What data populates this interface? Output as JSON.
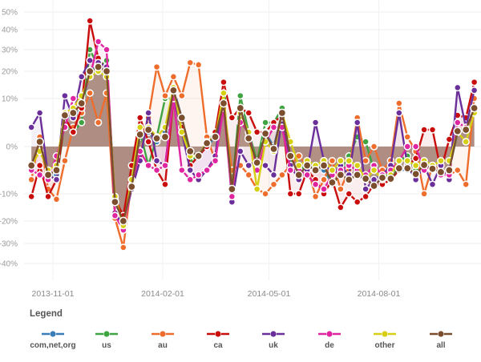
{
  "chart_data": {
    "type": "line",
    "title": "",
    "xlabel": "",
    "ylabel": "",
    "y_scale": "compressed (non-linear, symmetric around 0)",
    "ylim": [
      -40,
      50
    ],
    "y_ticks": [
      50,
      40,
      30,
      20,
      10,
      0,
      -10,
      -20,
      -30,
      -40
    ],
    "y_tick_labels": [
      "50%",
      "40%",
      "30%",
      "20%",
      "10%",
      "0%",
      "-10%",
      "-20%",
      "-30%",
      "-40%"
    ],
    "x_ticks": [
      "2013-11-01",
      "2014-02-01",
      "2014-05-01",
      "2014-08-01"
    ],
    "grid": true,
    "legend_title": "Legend",
    "legend_position": "bottom",
    "x": [
      "2013-10-14",
      "2013-10-21",
      "2013-10-28",
      "2013-11-04",
      "2013-11-11",
      "2013-11-18",
      "2013-11-25",
      "2013-12-02",
      "2013-12-09",
      "2013-12-16",
      "2013-12-23",
      "2013-12-30",
      "2014-01-06",
      "2014-01-13",
      "2014-01-20",
      "2014-01-27",
      "2014-02-03",
      "2014-02-10",
      "2014-02-17",
      "2014-02-24",
      "2014-03-03",
      "2014-03-10",
      "2014-03-17",
      "2014-03-24",
      "2014-03-31",
      "2014-04-07",
      "2014-04-14",
      "2014-04-21",
      "2014-04-28",
      "2014-05-05",
      "2014-05-12",
      "2014-05-19",
      "2014-05-26",
      "2014-06-02",
      "2014-06-09",
      "2014-06-16",
      "2014-06-23",
      "2014-06-30",
      "2014-07-07",
      "2014-07-14",
      "2014-07-21",
      "2014-07-28",
      "2014-08-04",
      "2014-08-11",
      "2014-08-18",
      "2014-08-25",
      "2014-09-01",
      "2014-09-08",
      "2014-09-15",
      "2014-09-22",
      "2014-09-29",
      "2014-10-06",
      "2014-10-13",
      "2014-10-20"
    ],
    "series": [
      {
        "name": "com,net,org",
        "color": "#3b7db8",
        "values": [
          -4,
          1,
          -6,
          -6,
          6,
          6,
          8,
          20,
          23,
          21,
          -13,
          -20,
          -8,
          2,
          3,
          1,
          3,
          14,
          6,
          -1,
          -2,
          0,
          2,
          9,
          -9,
          8,
          2,
          -3,
          3,
          0,
          7,
          -2,
          -6,
          -4,
          -5,
          -5,
          -8,
          -6,
          -7,
          -6,
          -7,
          -8,
          -7,
          -6,
          -5,
          -5,
          -6,
          -4,
          -5,
          -5,
          -5,
          3,
          4,
          8
        ]
      },
      {
        "name": "us",
        "color": "#3fa441",
        "values": [
          -4,
          1,
          -6,
          -7,
          5,
          3,
          5,
          30,
          22,
          25,
          -13,
          -20,
          -8,
          3,
          -4,
          2,
          10,
          10,
          6,
          -3,
          -2,
          1,
          3,
          10,
          -9,
          11,
          3,
          -3,
          5,
          5,
          8,
          -3,
          -5,
          -4,
          -5,
          -4,
          -8,
          -6,
          -2,
          2,
          1,
          -5,
          -5,
          -7,
          -3,
          -2,
          -5,
          -4,
          -5,
          -5,
          -5,
          3,
          4,
          7
        ]
      },
      {
        "name": "au",
        "color": "#ef6d2c",
        "values": [
          -7,
          2,
          -9,
          -12,
          -3,
          4,
          7,
          12,
          5,
          12,
          -19,
          -32,
          -7,
          -2,
          6,
          22,
          11,
          18,
          11,
          24,
          23,
          2,
          -3,
          9,
          -5,
          -4,
          -6,
          -9,
          -10,
          -8,
          -6,
          -4,
          -2,
          -4,
          -11,
          -7,
          -3,
          -9,
          -5,
          6,
          -3,
          0,
          -5,
          -3,
          9,
          2,
          -1,
          -10,
          -4,
          -5,
          -6,
          -5,
          -8,
          10
        ]
      },
      {
        "name": "ca",
        "color": "#c90d0d",
        "values": [
          -11,
          -4,
          -11,
          -7,
          6,
          3,
          8,
          45,
          26,
          20,
          -12,
          -18,
          -4,
          6,
          1,
          -5,
          -8,
          10,
          4,
          -4,
          -2,
          0,
          3,
          16,
          6,
          8,
          7,
          3,
          3,
          5,
          6.5,
          -10,
          -10,
          -5,
          -7,
          -10,
          -7,
          -15,
          -10,
          -13,
          -11,
          -8,
          -8,
          -7,
          -5,
          -4,
          -2.5,
          3.5,
          3.5,
          -5,
          1.5,
          6.5,
          6,
          16
        ]
      },
      {
        "name": "uk",
        "color": "#6a2f9a",
        "values": [
          4,
          7,
          -6,
          -7,
          11,
          6,
          18,
          25,
          24,
          22,
          -17,
          -22,
          -9,
          -3,
          7,
          -3,
          -4,
          11,
          3,
          -5,
          -7,
          -5,
          -2,
          12,
          -13,
          -1,
          -4,
          -3,
          -4,
          -6,
          6,
          -4,
          -7,
          -5,
          5,
          -3,
          -6,
          -4,
          -6,
          5,
          -9,
          -7,
          -6,
          -4,
          7,
          -4,
          -7,
          -4,
          -8,
          -4,
          -7,
          14,
          4,
          13
        ]
      },
      {
        "name": "de",
        "color": "#df26a0",
        "values": [
          -5,
          -6,
          -7,
          -2,
          4,
          10,
          10,
          18,
          34,
          30,
          -18,
          -24,
          -8,
          -1,
          -4,
          -5,
          -4,
          10,
          -5,
          -7,
          -6,
          -5,
          -3,
          8,
          -11,
          5,
          3,
          -5,
          1,
          4,
          4,
          -5,
          -5,
          -6,
          -8,
          -9,
          -6,
          -5,
          -4,
          -5,
          -6,
          -4,
          -6,
          -5,
          -3,
          0,
          0,
          -5,
          -4,
          -6,
          -6,
          5,
          4,
          7
        ]
      },
      {
        "name": "other",
        "color": "#d6cf12",
        "values": [
          -4,
          -1,
          -5,
          -4,
          7,
          8,
          11,
          18,
          20,
          18,
          -11,
          -22,
          -7,
          4,
          4,
          2,
          4,
          14,
          3,
          -2,
          -2,
          1,
          2,
          12,
          -9,
          7,
          3,
          -9,
          1,
          -1,
          7,
          1,
          -4,
          -3,
          -4,
          -3,
          -5,
          -3,
          -3,
          -4,
          -7,
          -5,
          -7,
          -6,
          -3,
          -3,
          -4,
          -3,
          -4,
          -3,
          -3,
          3,
          1,
          7
        ]
      },
      {
        "name": "all",
        "color": "#7b4e2e",
        "values": [
          -4,
          1,
          -6,
          -5,
          6.5,
          7,
          9,
          20,
          22,
          20,
          -13,
          -20,
          -8.5,
          2.5,
          3.5,
          1.7,
          2,
          13,
          6,
          -1,
          -2,
          0.7,
          2,
          9,
          -9,
          8,
          1.7,
          -3.4,
          2.7,
          -0.5,
          7,
          -2,
          -6,
          -4,
          -5,
          -4,
          -7.6,
          -6,
          -7,
          -6,
          -6.8,
          -8.3,
          -6.6,
          -6.8,
          -4.6,
          -4.6,
          -5.8,
          -3.9,
          -4.7,
          -5.4,
          -5,
          3.2,
          3.5,
          8
        ]
      }
    ]
  },
  "legend": {
    "title": "Legend",
    "items": [
      {
        "label": "com,net,org"
      },
      {
        "label": "us"
      },
      {
        "label": "au"
      },
      {
        "label": "ca"
      },
      {
        "label": "uk"
      },
      {
        "label": "de"
      },
      {
        "label": "other"
      },
      {
        "label": "all"
      }
    ]
  }
}
